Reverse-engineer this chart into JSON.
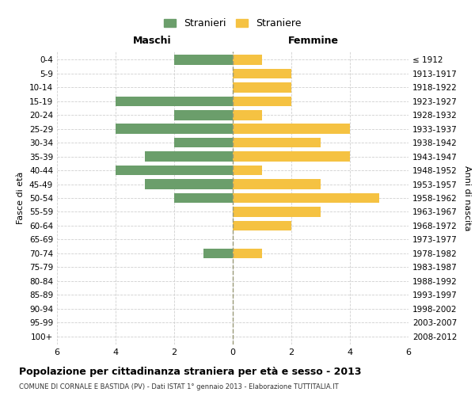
{
  "age_groups": [
    "0-4",
    "5-9",
    "10-14",
    "15-19",
    "20-24",
    "25-29",
    "30-34",
    "35-39",
    "40-44",
    "45-49",
    "50-54",
    "55-59",
    "60-64",
    "65-69",
    "70-74",
    "75-79",
    "80-84",
    "85-89",
    "90-94",
    "95-99",
    "100+"
  ],
  "birth_years": [
    "2008-2012",
    "2003-2007",
    "1998-2002",
    "1993-1997",
    "1988-1992",
    "1983-1987",
    "1978-1982",
    "1973-1977",
    "1968-1972",
    "1963-1967",
    "1958-1962",
    "1953-1957",
    "1948-1952",
    "1943-1947",
    "1938-1942",
    "1933-1937",
    "1928-1932",
    "1923-1927",
    "1918-1922",
    "1913-1917",
    "≤ 1912"
  ],
  "maschi": [
    2,
    0,
    0,
    4,
    2,
    4,
    2,
    3,
    4,
    3,
    2,
    0,
    0,
    0,
    1,
    0,
    0,
    0,
    0,
    0,
    0
  ],
  "femmine": [
    1,
    2,
    2,
    2,
    1,
    4,
    3,
    4,
    1,
    3,
    5,
    3,
    2,
    0,
    1,
    0,
    0,
    0,
    0,
    0,
    0
  ],
  "color_maschi": "#6b9e6b",
  "color_femmine": "#f5c242",
  "title": "Popolazione per cittadinanza straniera per età e sesso - 2013",
  "subtitle": "COMUNE DI CORNALE E BASTIDA (PV) - Dati ISTAT 1° gennaio 2013 - Elaborazione TUTTITALIA.IT",
  "xlabel_left": "Maschi",
  "xlabel_right": "Femmine",
  "ylabel_left": "Fasce di età",
  "ylabel_right": "Anni di nascita",
  "legend_maschi": "Stranieri",
  "legend_femmine": "Straniere",
  "xlim": 6,
  "background_color": "#ffffff",
  "grid_color": "#d0d0d0",
  "center_line_color": "#999977"
}
